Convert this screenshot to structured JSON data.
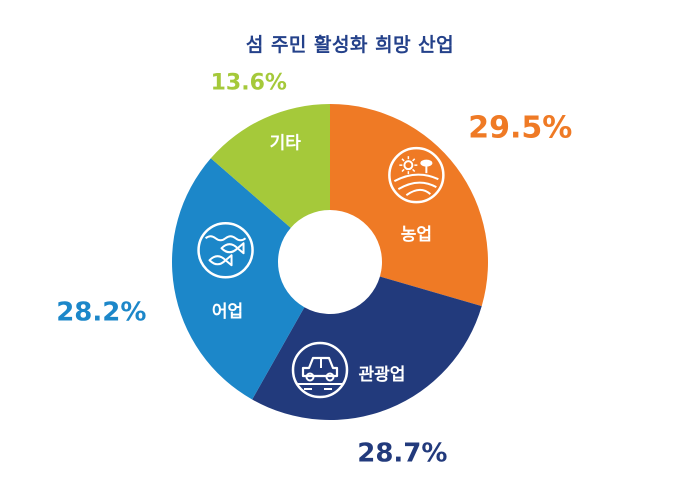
{
  "chart_data": {
    "type": "pie",
    "title": "섬 주민 활성화 희망 산업",
    "slices": [
      {
        "label": "농업",
        "value": 29.5,
        "value_label": "29.5%",
        "color": "#ef7a25",
        "icon": "farm-icon"
      },
      {
        "label": "관광업",
        "value": 28.7,
        "value_label": "28.7%",
        "color": "#223a7c",
        "icon": "car-icon"
      },
      {
        "label": "어업",
        "value": 28.2,
        "value_label": "28.2%",
        "color": "#1c87c9",
        "icon": "fish-icon"
      },
      {
        "label": "기타",
        "value": 13.6,
        "value_label": "13.6%",
        "color": "#a5c93a",
        "icon": ""
      }
    ],
    "start_angle_deg": 0,
    "direction": "clockwise",
    "donut": true
  }
}
